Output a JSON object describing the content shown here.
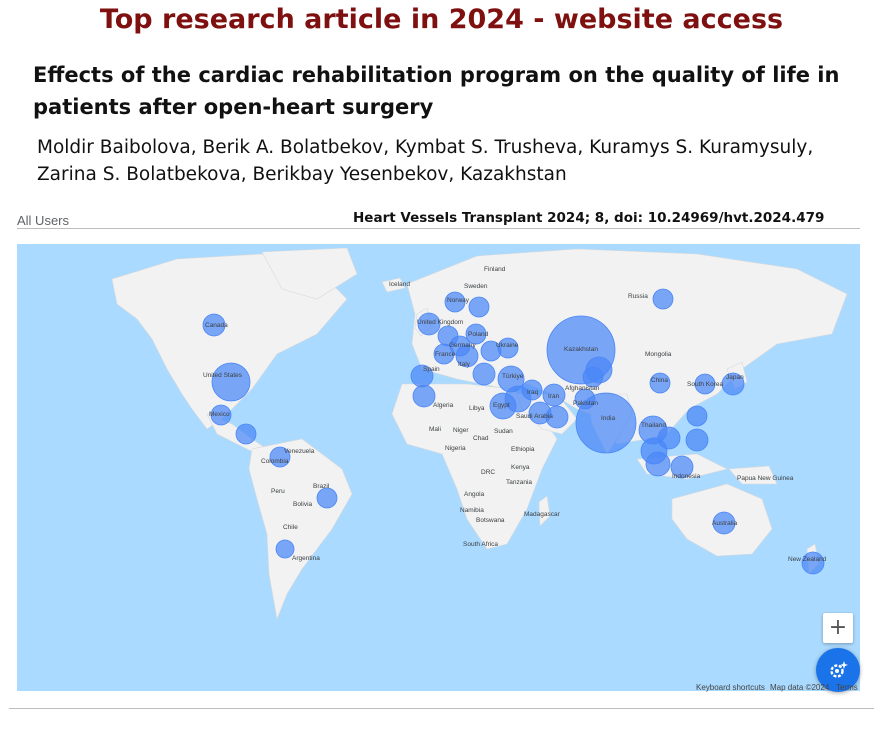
{
  "headline": "Top research article in 2024 - website access",
  "article": {
    "title": "Effects of the cardiac rehabilitation program on the quality of life in patients after open-heart surgery",
    "authors_line1": "Moldir  Baibolova, Berik A. Bolatbekov, Kymbat S. Trusheva, Kuramys S. Kuramysuly,",
    "authors_line2": "Zarina S. Bolatbekova, Berikbay Yesenbekov, Kazakhstan",
    "citation": "Heart Vessels Transplant 2024; 8, doi: 10.24969/hvt.2024.479"
  },
  "map": {
    "users_label": "All Users",
    "zoom_in_label": "+",
    "fab_icon": "settings-sparkle-icon",
    "keyboard_shortcuts": "Keyboard shortcuts",
    "map_data": "Map data ©2024",
    "terms": "Terms",
    "colors": {
      "ocean": "#aadaff",
      "land": "#f2f2f2",
      "bubble": "#4a86f7",
      "accent": "#1a73e8"
    },
    "country_labels": [
      "Finland",
      "Iceland",
      "Sweden",
      "Norway",
      "Russia",
      "Canada",
      "United Kingdom",
      "Poland",
      "Germany",
      "Ukraine",
      "France",
      "Italy",
      "Kazakhstan",
      "Mongolia",
      "Spain",
      "Türkiye",
      "United States",
      "Afghanistan",
      "China",
      "South Korea",
      "Japan",
      "Algeria",
      "Libya",
      "Egypt",
      "Iran",
      "Iraq",
      "Pakistan",
      "Mexico",
      "Saudi Arabia",
      "India",
      "Mali",
      "Niger",
      "Chad",
      "Sudan",
      "Thailand",
      "Nigeria",
      "Ethiopia",
      "Venezuela",
      "Colombia",
      "Kenya",
      "DRC",
      "Tanzania",
      "Indonesia",
      "Papua New Guinea",
      "Peru",
      "Brazil",
      "Bolivia",
      "Angola",
      "Namibia",
      "Botswana",
      "Madagascar",
      "Chile",
      "South Africa",
      "Australia",
      "Argentina",
      "New Zealand"
    ]
  }
}
